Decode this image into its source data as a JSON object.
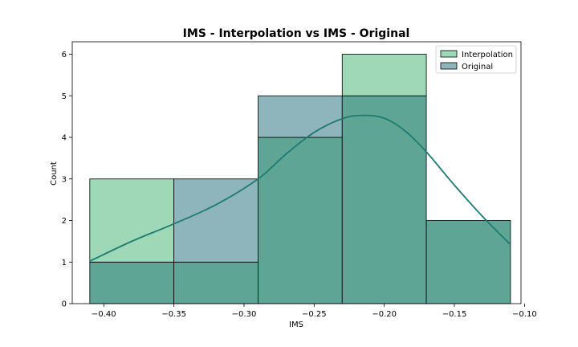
{
  "chart_data": {
    "type": "histogram",
    "title": "IMS - Interpolation vs IMS - Original",
    "xlabel": "IMS",
    "ylabel": "Count",
    "xlim": [
      -0.4225,
      -0.1025
    ],
    "ylim": [
      0,
      6.3
    ],
    "xticks": [
      -0.4,
      -0.35,
      -0.3,
      -0.25,
      -0.2,
      -0.15,
      -0.1
    ],
    "xtick_labels": [
      "−0.40",
      "−0.35",
      "−0.30",
      "−0.25",
      "−0.20",
      "−0.15",
      "−0.10"
    ],
    "yticks": [
      0,
      1,
      2,
      3,
      4,
      5,
      6
    ],
    "ytick_labels": [
      "0",
      "1",
      "2",
      "3",
      "4",
      "5",
      "6"
    ],
    "bin_edges": [
      -0.41,
      -0.35,
      -0.29,
      -0.23,
      -0.17,
      -0.11
    ],
    "legend_position": "top-right",
    "grid": false,
    "overlap_color": "#5ea596",
    "series": [
      {
        "name": "Interpolation",
        "color": "#9ed8b6",
        "counts": [
          3,
          1,
          4,
          6,
          2
        ]
      },
      {
        "name": "Original",
        "color": "#8db5bb",
        "counts": [
          1,
          3,
          5,
          5,
          2
        ]
      }
    ],
    "kde": {
      "color": "#1f7b6f",
      "x": [
        -0.41,
        -0.38,
        -0.35,
        -0.32,
        -0.29,
        -0.27,
        -0.25,
        -0.23,
        -0.215,
        -0.2,
        -0.185,
        -0.17,
        -0.15,
        -0.13,
        -0.11
      ],
      "y": [
        1.02,
        1.5,
        1.92,
        2.38,
        3.0,
        3.6,
        4.12,
        4.45,
        4.53,
        4.46,
        4.15,
        3.65,
        2.85,
        2.1,
        1.42
      ]
    }
  }
}
